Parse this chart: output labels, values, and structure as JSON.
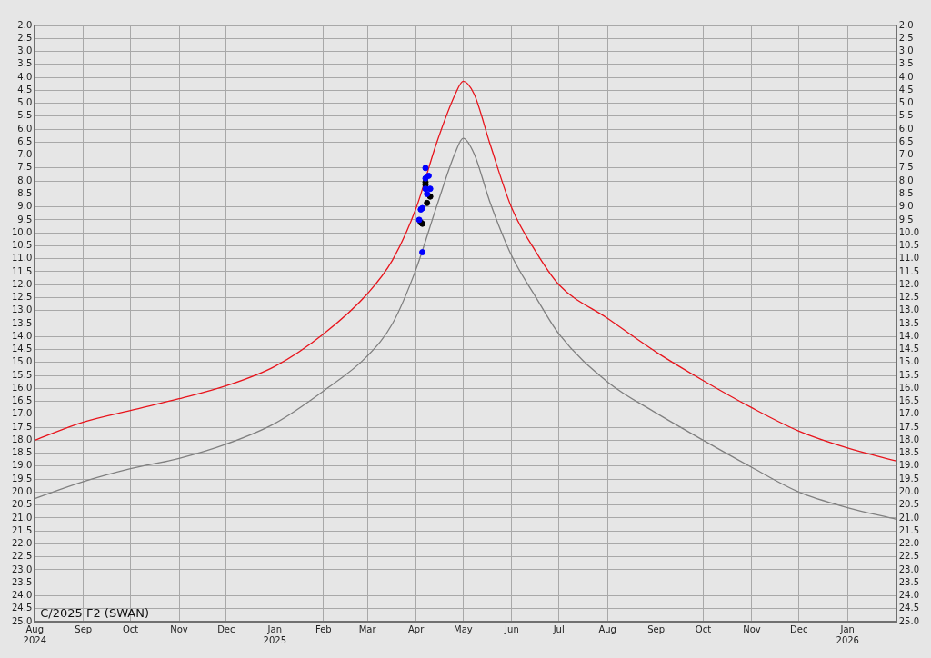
{
  "chart_data": {
    "type": "line",
    "title": "C/2025 F2 (SWAN)",
    "xlim": [
      "2024-08-01",
      "2026-02-01"
    ],
    "xticks": [
      {
        "value": "2024-08-01",
        "label": "Aug 2024"
      },
      {
        "value": "2024-09-01",
        "label": "Sep"
      },
      {
        "value": "2024-10-01",
        "label": "Oct"
      },
      {
        "value": "2024-11-01",
        "label": "Nov"
      },
      {
        "value": "2024-12-01",
        "label": "Dec"
      },
      {
        "value": "2025-01-01",
        "label": "Jan 2025"
      },
      {
        "value": "2025-02-01",
        "label": "Feb"
      },
      {
        "value": "2025-03-01",
        "label": "Mar"
      },
      {
        "value": "2025-04-01",
        "label": "Apr"
      },
      {
        "value": "2025-05-01",
        "label": "May"
      },
      {
        "value": "2025-06-01",
        "label": "Jun"
      },
      {
        "value": "2025-07-01",
        "label": "Jul"
      },
      {
        "value": "2025-08-01",
        "label": "Aug"
      },
      {
        "value": "2025-09-01",
        "label": "Sep"
      },
      {
        "value": "2025-10-01",
        "label": "Oct"
      },
      {
        "value": "2025-11-01",
        "label": "Nov"
      },
      {
        "value": "2025-12-01",
        "label": "Dec"
      },
      {
        "value": "2026-01-01",
        "label": "Jan 2026"
      }
    ],
    "ylim": [
      25,
      2
    ],
    "yticks": [
      {
        "value": 2,
        "label": "2.0"
      },
      {
        "value": 2.5,
        "label": "2.5"
      },
      {
        "value": 3,
        "label": "3.0"
      },
      {
        "value": 3.5,
        "label": "3.5"
      },
      {
        "value": 4,
        "label": "4.0"
      },
      {
        "value": 4.5,
        "label": "4.5"
      },
      {
        "value": 5,
        "label": "5.0"
      },
      {
        "value": 5.5,
        "label": "5.5"
      },
      {
        "value": 6,
        "label": "6.0"
      },
      {
        "value": 6.5,
        "label": "6.5"
      },
      {
        "value": 7,
        "label": "7.0"
      },
      {
        "value": 7.5,
        "label": "7.5"
      },
      {
        "value": 8,
        "label": "8.0"
      },
      {
        "value": 8.5,
        "label": "8.5"
      },
      {
        "value": 9,
        "label": "9.0"
      },
      {
        "value": 9.5,
        "label": "9.5"
      },
      {
        "value": 10,
        "label": "10.0"
      },
      {
        "value": 10.5,
        "label": "10.5"
      },
      {
        "value": 11,
        "label": "11.0"
      },
      {
        "value": 11.5,
        "label": "11.5"
      },
      {
        "value": 12,
        "label": "12.0"
      },
      {
        "value": 12.5,
        "label": "12.5"
      },
      {
        "value": 13,
        "label": "13.0"
      },
      {
        "value": 13.5,
        "label": "13.5"
      },
      {
        "value": 14,
        "label": "14.0"
      },
      {
        "value": 14.5,
        "label": "14.5"
      },
      {
        "value": 15,
        "label": "15.0"
      },
      {
        "value": 15.5,
        "label": "15.5"
      },
      {
        "value": 16,
        "label": "16.0"
      },
      {
        "value": 16.5,
        "label": "16.5"
      },
      {
        "value": 17,
        "label": "17.0"
      },
      {
        "value": 17.5,
        "label": "17.5"
      },
      {
        "value": 18,
        "label": "18.0"
      },
      {
        "value": 18.5,
        "label": "18.5"
      },
      {
        "value": 19,
        "label": "19.0"
      },
      {
        "value": 19.5,
        "label": "19.5"
      },
      {
        "value": 20,
        "label": "20.0"
      },
      {
        "value": 20.5,
        "label": "20.5"
      },
      {
        "value": 21,
        "label": "21.0"
      },
      {
        "value": 21.5,
        "label": "21.5"
      },
      {
        "value": 22,
        "label": "22.0"
      },
      {
        "value": 22.5,
        "label": "22.5"
      },
      {
        "value": 23,
        "label": "23.0"
      },
      {
        "value": 23.5,
        "label": "23.5"
      },
      {
        "value": 24,
        "label": "24.0"
      },
      {
        "value": 24.5,
        "label": "24.5"
      },
      {
        "value": 25,
        "label": "25.0"
      }
    ],
    "y2lim": [
      25,
      2
    ],
    "y2ticks": [
      {
        "value": 2,
        "label": "2.0"
      },
      {
        "value": 2.5,
        "label": "2.5"
      },
      {
        "value": 3,
        "label": "3.0"
      },
      {
        "value": 3.5,
        "label": "3.5"
      },
      {
        "value": 4,
        "label": "4.0"
      },
      {
        "value": 4.5,
        "label": "4.5"
      },
      {
        "value": 5,
        "label": "5.0"
      },
      {
        "value": 5.5,
        "label": "5.5"
      },
      {
        "value": 6,
        "label": "6.0"
      },
      {
        "value": 6.5,
        "label": "6.5"
      },
      {
        "value": 7,
        "label": "7.0"
      },
      {
        "value": 7.5,
        "label": "7.5"
      },
      {
        "value": 8,
        "label": "8.0"
      },
      {
        "value": 8.5,
        "label": "8.5"
      },
      {
        "value": 9,
        "label": "9.0"
      },
      {
        "value": 9.5,
        "label": "9.5"
      },
      {
        "value": 10,
        "label": "10.0"
      },
      {
        "value": 10.5,
        "label": "10.5"
      },
      {
        "value": 11,
        "label": "11.0"
      },
      {
        "value": 11.5,
        "label": "11.5"
      },
      {
        "value": 12,
        "label": "12.0"
      },
      {
        "value": 12.5,
        "label": "12.5"
      },
      {
        "value": 13,
        "label": "13.0"
      },
      {
        "value": 13.5,
        "label": "13.5"
      },
      {
        "value": 14,
        "label": "14.0"
      },
      {
        "value": 14.5,
        "label": "14.5"
      },
      {
        "value": 15,
        "label": "15.0"
      },
      {
        "value": 15.5,
        "label": "15.5"
      },
      {
        "value": 16,
        "label": "16.0"
      },
      {
        "value": 16.5,
        "label": "16.5"
      },
      {
        "value": 17,
        "label": "17.0"
      },
      {
        "value": 17.5,
        "label": "17.5"
      },
      {
        "value": 18,
        "label": "18.0"
      },
      {
        "value": 18.5,
        "label": "18.5"
      },
      {
        "value": 19,
        "label": "19.0"
      },
      {
        "value": 19.5,
        "label": "19.5"
      },
      {
        "value": 20,
        "label": "20.0"
      },
      {
        "value": 20.5,
        "label": "20.5"
      },
      {
        "value": 21,
        "label": "21.0"
      },
      {
        "value": 21.5,
        "label": "21.5"
      },
      {
        "value": 22,
        "label": "22.0"
      },
      {
        "value": 22.5,
        "label": "22.5"
      },
      {
        "value": 23,
        "label": "23.0"
      },
      {
        "value": 23.5,
        "label": "23.5"
      },
      {
        "value": 24,
        "label": "24.0"
      },
      {
        "value": 24.5,
        "label": "24.5"
      },
      {
        "value": 25,
        "label": "25.0"
      }
    ],
    "grid": true,
    "marker": "none",
    "line_style": "solid",
    "series": [
      {
        "type": "line",
        "color": "#e8141c",
        "x": [
          "2024-08-01",
          "2024-09-01",
          "2024-10-01",
          "2024-11-01",
          "2024-12-01",
          "2025-01-01",
          "2025-02-01",
          "2025-03-01",
          "2025-03-17",
          "2025-04-01",
          "2025-04-14",
          "2025-04-26",
          "2025-05-01",
          "2025-05-08",
          "2025-05-18",
          "2025-06-01",
          "2025-06-16",
          "2025-07-01",
          "2025-08-01",
          "2025-09-01",
          "2025-10-01",
          "2025-11-01",
          "2025-12-01",
          "2026-01-01",
          "2026-02-01"
        ],
        "values": [
          18.0,
          17.3,
          16.85,
          16.4,
          15.9,
          15.15,
          13.9,
          12.35,
          11.05,
          9.05,
          6.55,
          4.65,
          4.15,
          4.65,
          6.55,
          9.05,
          10.7,
          12.0,
          13.3,
          14.6,
          15.7,
          16.75,
          17.65,
          18.3,
          18.8
        ]
      },
      {
        "type": "line",
        "color": "#808080",
        "x": [
          "2024-08-01",
          "2024-09-01",
          "2024-10-01",
          "2024-11-01",
          "2024-12-01",
          "2025-01-01",
          "2025-02-01",
          "2025-03-01",
          "2025-03-17",
          "2025-04-01",
          "2025-04-14",
          "2025-04-26",
          "2025-05-01",
          "2025-05-08",
          "2025-05-18",
          "2025-06-01",
          "2025-06-16",
          "2025-07-01",
          "2025-08-01",
          "2025-09-01",
          "2025-10-01",
          "2025-11-01",
          "2025-12-01",
          "2026-01-01",
          "2026-02-01"
        ],
        "values": [
          20.25,
          19.6,
          19.1,
          18.7,
          18.15,
          17.35,
          16.1,
          14.75,
          13.5,
          11.4,
          9.0,
          6.9,
          6.35,
          6.95,
          8.8,
          10.9,
          12.45,
          13.9,
          15.75,
          16.95,
          18.0,
          19.05,
          20.0,
          20.6,
          21.05
        ]
      },
      {
        "type": "scatter",
        "marker": "circle",
        "color": "#0000ff",
        "x": [
          "2025-04-07",
          "2025-04-09",
          "2025-04-07",
          "2025-04-07",
          "2025-04-10",
          "2025-04-08",
          "2025-04-05",
          "2025-04-04",
          "2025-04-03",
          "2025-04-05"
        ],
        "values": [
          7.5,
          7.8,
          7.9,
          8.3,
          8.3,
          8.5,
          9.05,
          9.1,
          9.5,
          10.75
        ]
      },
      {
        "type": "scatter",
        "marker": "circle",
        "color": "#000000",
        "x": [
          "2025-04-07",
          "2025-04-07",
          "2025-04-10",
          "2025-04-08",
          "2025-04-05",
          "2025-04-04"
        ],
        "values": [
          8.05,
          8.15,
          8.6,
          8.85,
          9.65,
          9.6
        ]
      }
    ]
  }
}
